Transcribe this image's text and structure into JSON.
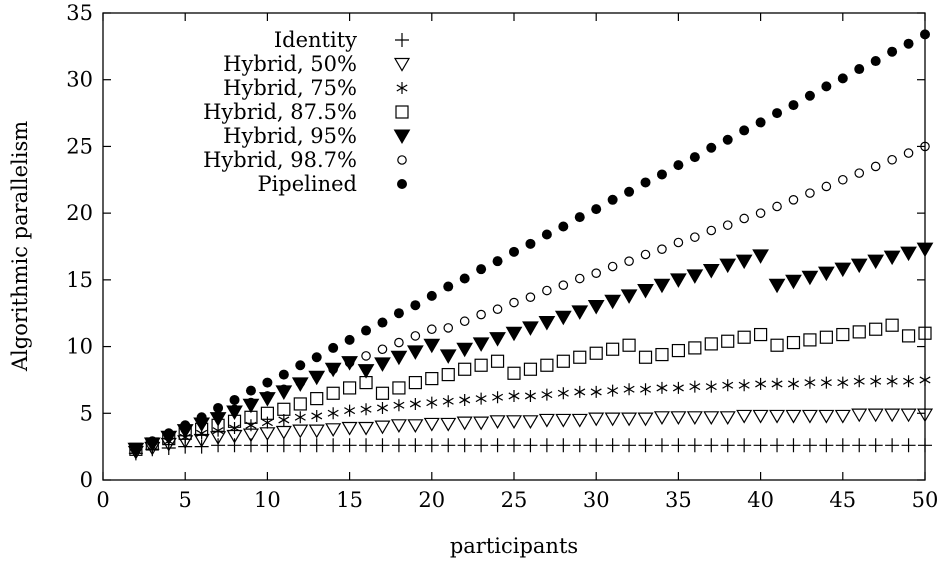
{
  "chart_data": {
    "type": "scatter",
    "title": "",
    "xlabel": "participants",
    "ylabel": "Algorithmic parallelism",
    "xlim": [
      0,
      50
    ],
    "ylim": [
      0,
      35
    ],
    "xticks": [
      0,
      5,
      10,
      15,
      20,
      25,
      30,
      35,
      40,
      45,
      50
    ],
    "yticks": [
      0,
      5,
      10,
      15,
      20,
      25,
      30,
      35
    ],
    "grid": false,
    "legend_position": "top-left",
    "series": [
      {
        "name": "Identity",
        "marker": "plus",
        "x": [
          2,
          3,
          4,
          5,
          6,
          7,
          8,
          9,
          10,
          11,
          12,
          13,
          14,
          15,
          16,
          17,
          18,
          19,
          20,
          21,
          22,
          23,
          24,
          25,
          26,
          27,
          28,
          29,
          30,
          31,
          32,
          33,
          34,
          35,
          36,
          37,
          38,
          39,
          40,
          41,
          42,
          43,
          44,
          45,
          46,
          47,
          48,
          49,
          50
        ],
        "y": [
          2.0,
          2.3,
          2.4,
          2.5,
          2.5,
          2.6,
          2.6,
          2.6,
          2.6,
          2.6,
          2.6,
          2.6,
          2.6,
          2.6,
          2.6,
          2.6,
          2.6,
          2.6,
          2.6,
          2.6,
          2.6,
          2.6,
          2.6,
          2.6,
          2.6,
          2.6,
          2.6,
          2.6,
          2.6,
          2.6,
          2.6,
          2.6,
          2.6,
          2.6,
          2.6,
          2.6,
          2.6,
          2.6,
          2.6,
          2.6,
          2.6,
          2.6,
          2.6,
          2.6,
          2.6,
          2.6,
          2.6,
          2.6,
          2.6
        ]
      },
      {
        "name": "Hybrid, 50%",
        "marker": "triangle-down-open",
        "x": [
          2,
          3,
          4,
          5,
          6,
          7,
          8,
          9,
          10,
          11,
          12,
          13,
          14,
          15,
          16,
          17,
          18,
          19,
          20,
          21,
          22,
          23,
          24,
          25,
          26,
          27,
          28,
          29,
          30,
          31,
          32,
          33,
          34,
          35,
          36,
          37,
          38,
          39,
          40,
          41,
          42,
          43,
          44,
          45,
          46,
          47,
          48,
          49,
          50
        ],
        "y": [
          2.1,
          2.4,
          2.7,
          2.9,
          3.0,
          3.2,
          3.3,
          3.4,
          3.5,
          3.6,
          3.7,
          3.7,
          3.8,
          3.9,
          3.9,
          4.0,
          4.1,
          4.1,
          4.2,
          4.2,
          4.3,
          4.3,
          4.4,
          4.4,
          4.4,
          4.5,
          4.5,
          4.5,
          4.6,
          4.6,
          4.6,
          4.6,
          4.7,
          4.7,
          4.7,
          4.7,
          4.7,
          4.8,
          4.8,
          4.8,
          4.8,
          4.8,
          4.8,
          4.8,
          4.9,
          4.9,
          4.9,
          4.9,
          4.9
        ]
      },
      {
        "name": "Hybrid, 75%",
        "marker": "asterisk",
        "x": [
          2,
          3,
          4,
          5,
          6,
          7,
          8,
          9,
          10,
          11,
          12,
          13,
          14,
          15,
          16,
          17,
          18,
          19,
          20,
          21,
          22,
          23,
          24,
          25,
          26,
          27,
          28,
          29,
          30,
          31,
          32,
          33,
          34,
          35,
          36,
          37,
          38,
          39,
          40,
          41,
          42,
          43,
          44,
          45,
          46,
          47,
          48,
          49,
          50
        ],
        "y": [
          2.2,
          2.5,
          2.9,
          3.2,
          3.5,
          3.7,
          3.9,
          4.1,
          4.3,
          4.5,
          4.7,
          4.8,
          5.0,
          5.2,
          5.3,
          5.4,
          5.6,
          5.7,
          5.8,
          5.9,
          6.0,
          6.1,
          6.2,
          6.3,
          6.3,
          6.4,
          6.5,
          6.6,
          6.6,
          6.7,
          6.8,
          6.8,
          6.9,
          6.9,
          7.0,
          7.0,
          7.1,
          7.1,
          7.2,
          7.2,
          7.2,
          7.3,
          7.3,
          7.3,
          7.4,
          7.4,
          7.4,
          7.4,
          7.5
        ]
      },
      {
        "name": "Hybrid, 87.5%",
        "marker": "square-open",
        "x": [
          2,
          3,
          4,
          5,
          6,
          7,
          8,
          9,
          10,
          11,
          12,
          13,
          14,
          15,
          16,
          17,
          18,
          19,
          20,
          21,
          22,
          23,
          24,
          25,
          26,
          27,
          28,
          29,
          30,
          31,
          32,
          33,
          34,
          35,
          36,
          37,
          38,
          39,
          40,
          41,
          42,
          43,
          44,
          45,
          46,
          47,
          48,
          49,
          50
        ],
        "y": [
          2.3,
          2.7,
          3.1,
          3.5,
          3.8,
          4.1,
          4.4,
          4.7,
          5.0,
          5.3,
          5.7,
          6.1,
          6.5,
          6.9,
          7.3,
          6.5,
          6.9,
          7.3,
          7.6,
          7.9,
          8.3,
          8.6,
          8.9,
          8.0,
          8.3,
          8.6,
          8.9,
          9.2,
          9.5,
          9.8,
          10.1,
          9.2,
          9.4,
          9.7,
          9.9,
          10.2,
          10.4,
          10.7,
          10.9,
          10.1,
          10.3,
          10.5,
          10.7,
          10.9,
          11.1,
          11.3,
          11.6,
          10.8,
          11.0
        ]
      },
      {
        "name": "Hybrid, 95%",
        "marker": "triangle-down-filled",
        "x": [
          2,
          3,
          4,
          5,
          6,
          7,
          8,
          9,
          10,
          11,
          12,
          13,
          14,
          15,
          16,
          17,
          18,
          19,
          20,
          21,
          22,
          23,
          24,
          25,
          26,
          27,
          28,
          29,
          30,
          31,
          32,
          33,
          34,
          35,
          36,
          37,
          38,
          39,
          40,
          41,
          42,
          43,
          44,
          45,
          46,
          47,
          48,
          49,
          50
        ],
        "y": [
          2.3,
          2.7,
          3.2,
          3.7,
          4.2,
          4.6,
          5.1,
          5.6,
          6.1,
          6.6,
          7.2,
          7.7,
          8.3,
          8.8,
          8.2,
          8.7,
          9.2,
          9.6,
          10.1,
          9.3,
          9.8,
          10.2,
          10.6,
          11.0,
          11.4,
          11.8,
          12.2,
          12.6,
          13.0,
          13.4,
          13.8,
          14.2,
          14.6,
          15.0,
          15.3,
          15.7,
          16.1,
          16.4,
          16.8,
          14.6,
          14.9,
          15.2,
          15.5,
          15.8,
          16.1,
          16.4,
          16.7,
          17.0,
          17.3
        ]
      },
      {
        "name": "Hybrid, 98.7%",
        "marker": "circle-open",
        "x": [
          2,
          3,
          4,
          5,
          6,
          7,
          8,
          9,
          10,
          11,
          12,
          13,
          14,
          15,
          16,
          17,
          18,
          19,
          20,
          21,
          22,
          23,
          24,
          25,
          26,
          27,
          28,
          29,
          30,
          31,
          32,
          33,
          34,
          35,
          36,
          37,
          38,
          39,
          40,
          41,
          42,
          43,
          44,
          45,
          46,
          47,
          48,
          49,
          50
        ],
        "y": [
          2.3,
          2.8,
          3.3,
          3.8,
          4.3,
          4.8,
          5.3,
          5.8,
          6.3,
          6.8,
          7.3,
          7.8,
          8.3,
          8.8,
          9.3,
          9.8,
          10.3,
          10.8,
          11.3,
          11.4,
          11.9,
          12.4,
          12.8,
          13.3,
          13.7,
          14.2,
          14.6,
          15.1,
          15.5,
          16.0,
          16.4,
          16.9,
          17.3,
          17.8,
          18.2,
          18.7,
          19.1,
          19.6,
          20.0,
          20.5,
          21.0,
          21.5,
          22.0,
          22.5,
          23.0,
          23.5,
          24.0,
          24.5,
          25.0
        ]
      },
      {
        "name": "Pipelined",
        "marker": "circle-filled",
        "x": [
          2,
          3,
          4,
          5,
          6,
          7,
          8,
          9,
          10,
          11,
          12,
          13,
          14,
          15,
          16,
          17,
          18,
          19,
          20,
          21,
          22,
          23,
          24,
          25,
          26,
          27,
          28,
          29,
          30,
          31,
          32,
          33,
          34,
          35,
          36,
          37,
          38,
          39,
          40,
          41,
          42,
          43,
          44,
          45,
          46,
          47,
          48,
          49,
          50
        ],
        "y": [
          2.3,
          2.9,
          3.5,
          4.1,
          4.7,
          5.4,
          6.0,
          6.7,
          7.3,
          7.9,
          8.6,
          9.2,
          9.9,
          10.5,
          11.2,
          11.8,
          12.5,
          13.1,
          13.8,
          14.5,
          15.1,
          15.8,
          16.4,
          17.1,
          17.7,
          18.4,
          19.0,
          19.7,
          20.3,
          21.0,
          21.6,
          22.3,
          22.9,
          23.6,
          24.2,
          24.9,
          25.5,
          26.2,
          26.8,
          27.5,
          28.1,
          28.8,
          29.5,
          30.1,
          30.8,
          31.4,
          32.1,
          32.7,
          33.4
        ]
      }
    ]
  }
}
